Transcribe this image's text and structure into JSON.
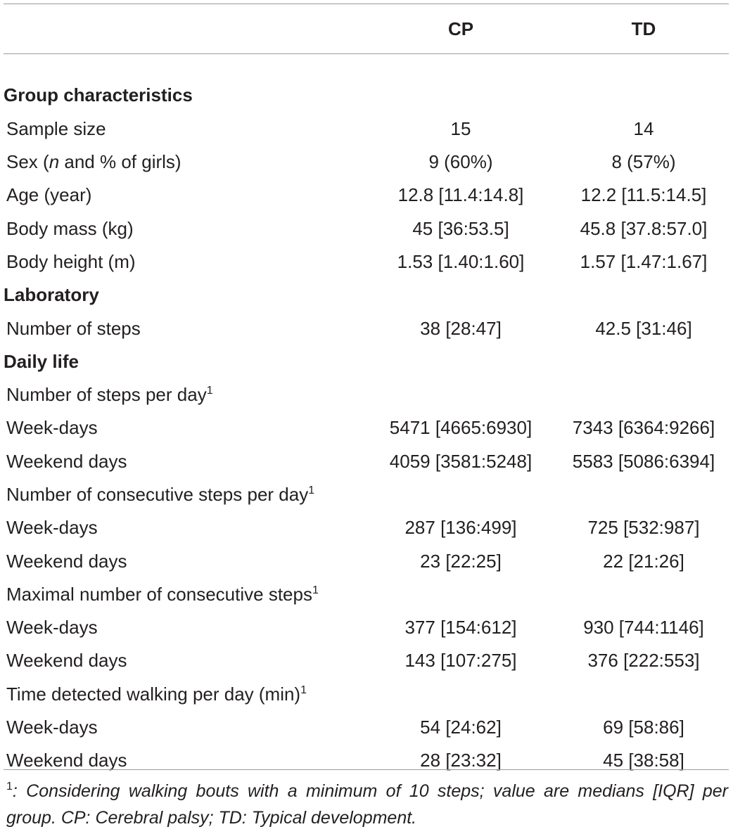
{
  "table": {
    "columns": [
      "",
      "CP",
      "TD"
    ],
    "rows": [
      {
        "type": "section",
        "label": "Group characteristics"
      },
      {
        "type": "data",
        "label": "Sample size",
        "cp": "15",
        "td": "14"
      },
      {
        "type": "data",
        "label_pre": "Sex (",
        "label_em": "n",
        "label_post": " and % of girls)",
        "cp": "9 (60%)",
        "td": "8 (57%)"
      },
      {
        "type": "data",
        "label": "Age (year)",
        "cp": "12.8 [11.4:14.8]",
        "td": "12.2 [11.5:14.5]"
      },
      {
        "type": "data",
        "label": "Body mass (kg)",
        "cp": "45 [36:53.5]",
        "td": "45.8 [37.8:57.0]"
      },
      {
        "type": "data",
        "label": "Body height (m)",
        "cp": "1.53 [1.40:1.60]",
        "td": "1.57 [1.47:1.67]"
      },
      {
        "type": "section",
        "label": "Laboratory"
      },
      {
        "type": "data",
        "label": "Number of steps",
        "cp": "38 [28:47]",
        "td": "42.5 [31:46]"
      },
      {
        "type": "section",
        "label": "Daily life"
      },
      {
        "type": "sub",
        "label": "Number of steps per day",
        "sup": "1"
      },
      {
        "type": "data",
        "label": "Week-days",
        "cp": "5471 [4665:6930]",
        "td": "7343 [6364:9266]"
      },
      {
        "type": "data",
        "label": "Weekend days",
        "cp": "4059 [3581:5248]",
        "td": "5583 [5086:6394]"
      },
      {
        "type": "sub",
        "label": "Number of consecutive steps per day",
        "sup": "1"
      },
      {
        "type": "data",
        "label": "Week-days",
        "cp": "287 [136:499]",
        "td": "725 [532:987]"
      },
      {
        "type": "data",
        "label": "Weekend days",
        "cp": "23 [22:25]",
        "td": "22 [21:26]"
      },
      {
        "type": "sub",
        "label": "Maximal number of consecutive steps",
        "sup": "1"
      },
      {
        "type": "data",
        "label": "Week-days",
        "cp": "377 [154:612]",
        "td": "930 [744:1146]"
      },
      {
        "type": "data",
        "label": "Weekend days",
        "cp": "143 [107:275]",
        "td": "376 [222:553]"
      },
      {
        "type": "sub",
        "label": "Time detected walking per day (min)",
        "sup": "1"
      },
      {
        "type": "data",
        "label": "Week-days",
        "cp": "54 [24:62]",
        "td": "69 [58:86]"
      },
      {
        "type": "data",
        "label": "Weekend days",
        "cp": "28 [23:32]",
        "td": "45 [38:58]"
      }
    ]
  },
  "footnote": {
    "mark": "1",
    "text": ": Considering walking bouts with a minimum of 10 steps; value are medians [IQR] per group. CP: Cerebral palsy; TD: Typical development."
  }
}
